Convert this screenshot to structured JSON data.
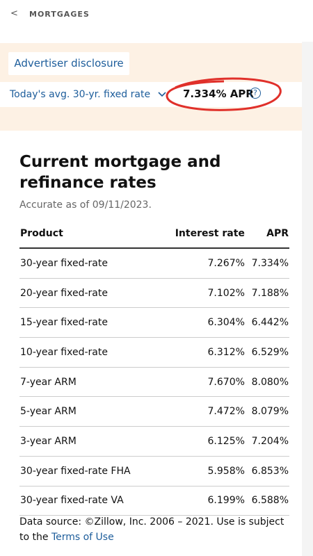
{
  "header": {
    "back": "<",
    "title": "MORTGAGES"
  },
  "disclosure": "Advertiser disclosure",
  "summary": {
    "label": "Today's avg. 30-yr. fixed rate",
    "value": "7.334% APR",
    "help": "?"
  },
  "card": {
    "title": "Current mortgage and refinance rates",
    "subtitle": "Accurate as of 09/11/2023."
  },
  "table": {
    "columns": [
      "Product",
      "Interest rate",
      "APR"
    ],
    "rows": [
      [
        "30-year fixed-rate",
        "7.267%",
        "7.334%"
      ],
      [
        "20-year fixed-rate",
        "7.102%",
        "7.188%"
      ],
      [
        "15-year fixed-rate",
        "6.304%",
        "6.442%"
      ],
      [
        "10-year fixed-rate",
        "6.312%",
        "6.529%"
      ],
      [
        "7-year ARM",
        "7.670%",
        "8.080%"
      ],
      [
        "5-year ARM",
        "7.472%",
        "8.079%"
      ],
      [
        "3-year ARM",
        "6.125%",
        "7.204%"
      ],
      [
        "30-year fixed-rate FHA",
        "5.958%",
        "6.853%"
      ],
      [
        "30-year fixed-rate VA",
        "6.199%",
        "6.588%"
      ]
    ]
  },
  "footer": {
    "text": "Data source: ©Zillow, Inc. 2006 – 2021. Use is subject to the",
    "link": "Terms of Use"
  }
}
